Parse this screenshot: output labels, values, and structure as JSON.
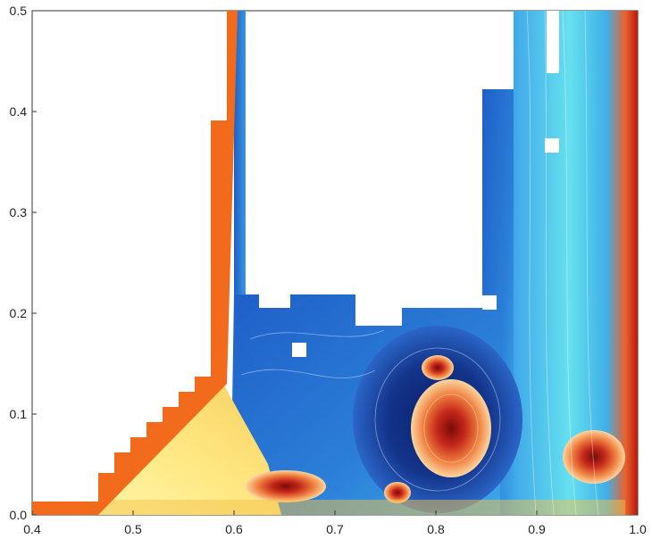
{
  "chart_data": {
    "type": "heatmap",
    "title": "",
    "xlabel": "",
    "ylabel": "",
    "xlim": [
      0.4,
      1.0
    ],
    "ylim": [
      0.0,
      0.5
    ],
    "xticks": [
      "0.4",
      "0.5",
      "0.6",
      "0.7",
      "0.8",
      "0.9",
      "1.0"
    ],
    "yticks": [
      "0.0",
      "0.1",
      "0.2",
      "0.3",
      "0.4",
      "0.5"
    ],
    "grid": false,
    "legend": "none",
    "colormap": [
      "#0b1f6e",
      "#1f5fc8",
      "#3fa8e8",
      "#66e0ef",
      "#fff7a8",
      "#f4c24a",
      "#e8622a",
      "#b81a10"
    ],
    "colors": {
      "background": "#ffffff",
      "solid_region": "#f26a1b",
      "axis": "#333333"
    }
  }
}
